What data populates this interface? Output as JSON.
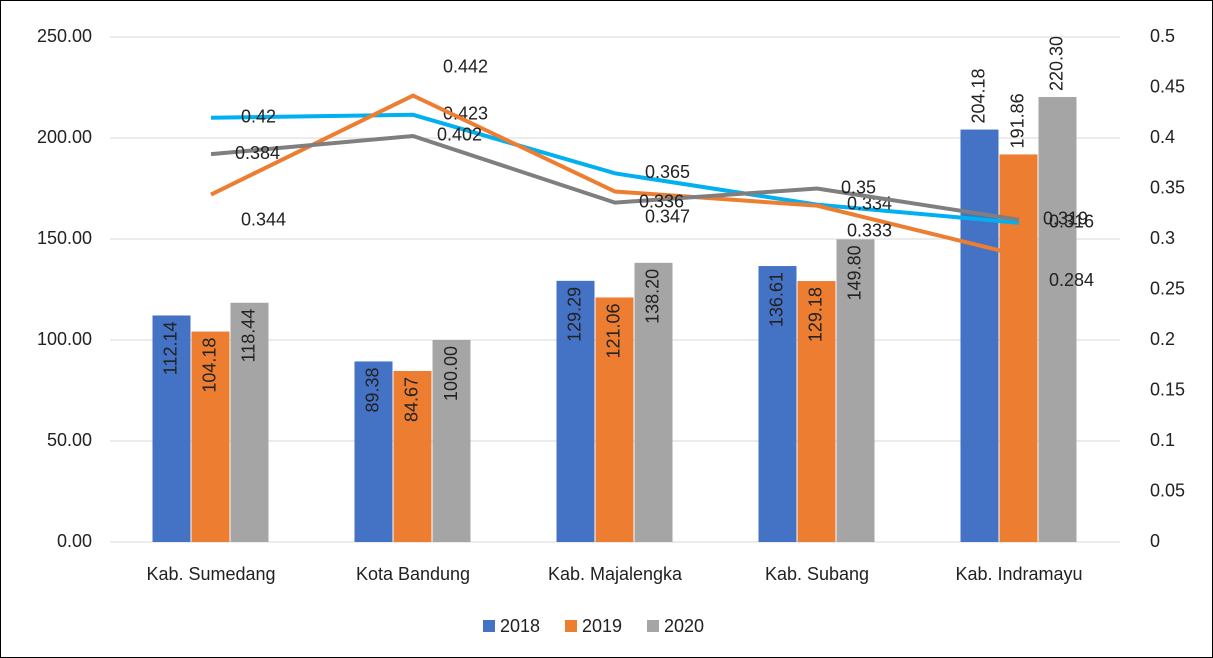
{
  "chart_data": {
    "type": "bar_line",
    "categories": [
      "Kab. Sumedang",
      "Kota Bandung",
      "Kab. Majalengka",
      "Kab. Subang",
      "Kab. Indramayu"
    ],
    "series": [
      {
        "name": "2018",
        "type": "bar",
        "color": "#4472c4",
        "values": [
          112.14,
          89.38,
          129.29,
          136.61,
          204.18
        ],
        "value_labels": [
          "112.14",
          "89.38",
          "129.29",
          "136.61",
          "204.18"
        ]
      },
      {
        "name": "2019",
        "type": "bar",
        "color": "#ed7d31",
        "values": [
          104.18,
          84.67,
          121.06,
          129.18,
          191.86
        ],
        "value_labels": [
          "104.18",
          "84.67",
          "121.06",
          "129.18",
          "191.86"
        ]
      },
      {
        "name": "2020",
        "type": "bar",
        "color": "#a5a5a5",
        "values": [
          118.44,
          100,
          138.2,
          149.8,
          220.3
        ],
        "value_labels": [
          "118.44",
          "100.00",
          "138.20",
          "149.80",
          "220.30"
        ]
      },
      {
        "type": "line",
        "axis": "y2",
        "color": "#00b0f0",
        "values": [
          0.42,
          0.423,
          0.365,
          0.334,
          0.316
        ]
      },
      {
        "type": "line",
        "axis": "y2",
        "color": "#ed7d31",
        "values": [
          0.344,
          0.442,
          0.347,
          0.333,
          0.284
        ]
      },
      {
        "type": "line",
        "axis": "y2",
        "color": "#7f7f7f",
        "values": [
          0.384,
          0.402,
          0.336,
          0.35,
          0.319
        ]
      }
    ],
    "ylim": [
      0,
      250
    ],
    "yticks": [
      {
        "value": 0,
        "label": "0.00"
      },
      {
        "value": 50,
        "label": "50.00"
      },
      {
        "value": 100,
        "label": "100.00"
      },
      {
        "value": 150,
        "label": "150.00"
      },
      {
        "value": 200,
        "label": "200.00"
      },
      {
        "value": 250,
        "label": "250.00"
      }
    ],
    "y2lim": [
      0,
      0.5
    ],
    "y2ticks": [
      0,
      0.05,
      0.1,
      0.15,
      0.2,
      0.25,
      0.3,
      0.35,
      0.4,
      0.45,
      0.5
    ],
    "grid": true,
    "legend": "bottom"
  }
}
